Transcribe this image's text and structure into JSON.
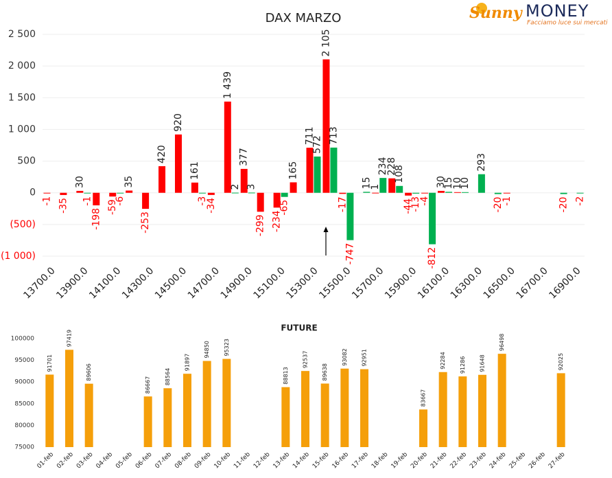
{
  "logo": {
    "brand": "Sunny",
    "name": "MONEY",
    "tagline": "Facciamo luce sui mercati"
  },
  "chart_data": [
    {
      "type": "bar",
      "title": "DAX MARZO",
      "categories": [
        "13700.0",
        null,
        "13900.0",
        null,
        "14100.0",
        null,
        "14300.0",
        null,
        "14500.0",
        null,
        "14700.0",
        null,
        "14900.0",
        null,
        "15100.0",
        null,
        "15300.0",
        null,
        "15500.0",
        null,
        "15700.0",
        null,
        "15900.0",
        null,
        "16100.0",
        null,
        "16300.0",
        null,
        "16500.0",
        null,
        "16700.0",
        null,
        "16900.0"
      ],
      "series": [
        {
          "color": "#ff0000",
          "values": [
            -1,
            -35,
            30,
            -198,
            -59,
            35,
            -253,
            420,
            920,
            161,
            -34,
            1439,
            377,
            -299,
            -234,
            165,
            711,
            2105,
            -17,
            null,
            1,
            228,
            -44,
            -4,
            30,
            10,
            null,
            null,
            -1,
            null,
            null,
            null,
            null
          ],
          "value_labels": [
            "-1",
            "-35",
            "30",
            "-198",
            "-59",
            "35",
            "-253",
            "420",
            "920",
            "161",
            "-34",
            "1 439",
            "377",
            "-299",
            "-234",
            "165",
            "711",
            "2 105",
            "-17",
            null,
            "1",
            "228",
            "-44",
            "-4",
            "30",
            "10",
            null,
            null,
            "-1",
            null,
            null,
            null,
            null
          ]
        },
        {
          "color": "#00b050",
          "values": [
            null,
            null,
            -1,
            null,
            -6,
            null,
            null,
            null,
            null,
            -3,
            null,
            2,
            3,
            null,
            -65,
            null,
            572,
            713,
            -747,
            15,
            234,
            108,
            -13,
            -812,
            15,
            10,
            293,
            -20,
            null,
            null,
            null,
            -20,
            -2
          ],
          "value_labels": [
            null,
            null,
            "-1",
            null,
            "-6",
            null,
            null,
            null,
            null,
            "-3",
            null,
            "2",
            "3",
            null,
            "-65",
            null,
            "572",
            "713",
            "-747",
            "15",
            "234",
            "108",
            "-13",
            "-812",
            "15",
            "10",
            "293",
            "-20",
            null,
            null,
            null,
            "-20",
            "-2"
          ]
        }
      ],
      "ylim": [
        -1000,
        2500
      ],
      "yticks": [
        {
          "value": 2500,
          "label": "2 500"
        },
        {
          "value": 2000,
          "label": "2 000"
        },
        {
          "value": 1500,
          "label": "1 500"
        },
        {
          "value": 1000,
          "label": "1 000"
        },
        500,
        0,
        {
          "value": -500,
          "label": "(500)"
        },
        {
          "value": -1000,
          "label": "(1 000)"
        }
      ],
      "grid": true,
      "negative_color": "#ff0000"
    },
    {
      "type": "bar",
      "title": "FUTURE",
      "categories": [
        "01-feb",
        "02-feb",
        "03-feb",
        "04-feb",
        "05-feb",
        "06-feb",
        "07-feb",
        "08-feb",
        "09-feb",
        "10-feb",
        "11-feb",
        "12-feb",
        "13-feb",
        "14-feb",
        "15-feb",
        "16-feb",
        "17-feb",
        "18-feb",
        "19-feb",
        "20-feb",
        "21-feb",
        "22-feb",
        "23-feb",
        "24-feb",
        "25-feb",
        "26-feb",
        "27-feb"
      ],
      "series": [
        {
          "color": "#f59f0a",
          "values": [
            91701,
            97419,
            89606,
            null,
            null,
            86667,
            88564,
            91897,
            94850,
            95323,
            null,
            null,
            88813,
            92537,
            89638,
            93082,
            92951,
            null,
            null,
            83667,
            92284,
            91286,
            91648,
            96498,
            null,
            null,
            92025
          ]
        }
      ],
      "ylim": [
        75000,
        100000
      ],
      "yticks": [
        75000,
        80000,
        85000,
        90000,
        95000,
        100000
      ],
      "grid": false
    }
  ]
}
